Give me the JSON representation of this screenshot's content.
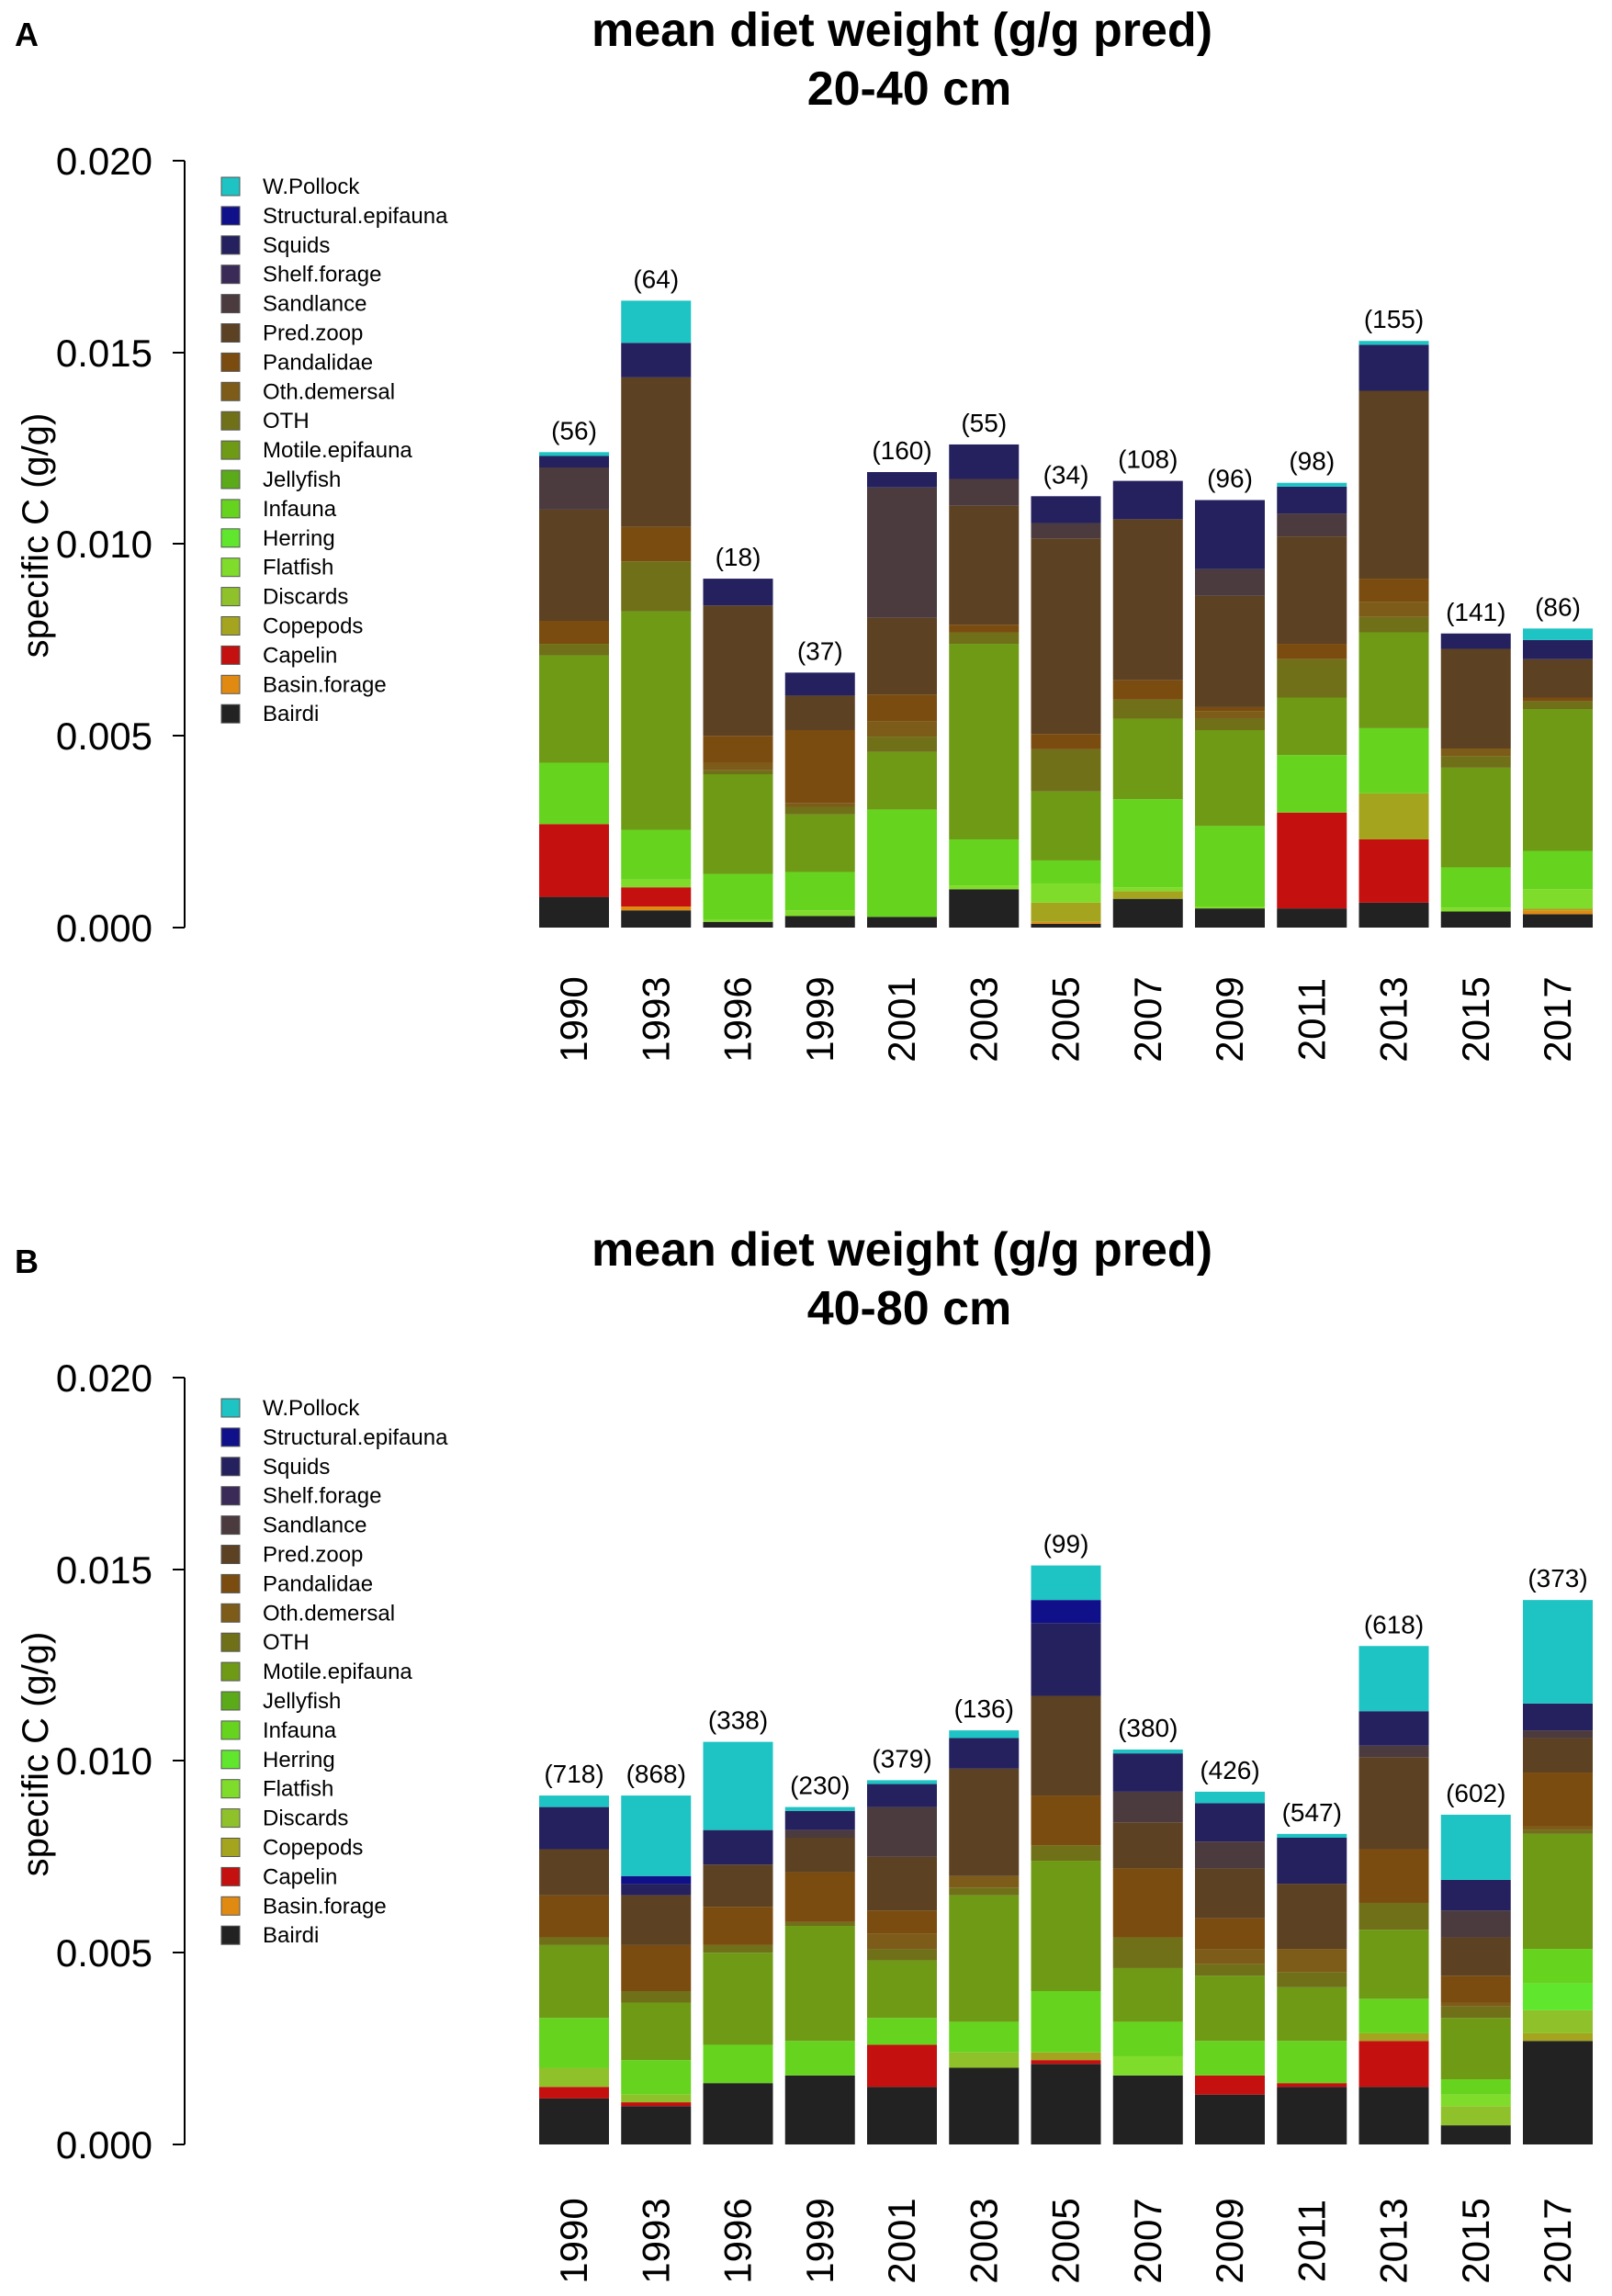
{
  "colors": {
    "W.Pollock": "#1ec3c3",
    "Structural.epifauna": "#10108a",
    "Squids": "#25215e",
    "Shelf.forage": "#3a2a58",
    "Sandlance": "#4b3a3e",
    "Pred.zoop": "#5c4122",
    "Pandalidae": "#7a4c0f",
    "Oth.demersal": "#7d5b18",
    "OTH": "#6f7018",
    "Motile.epifauna": "#6e9a16",
    "Jellyfish": "#5aaa1a",
    "Infauna": "#66d41e",
    "Herring": "#5fe62d",
    "Flatfish": "#80dc2a",
    "Discards": "#8fc22a",
    "Copepods": "#a4a41e",
    "Capelin": "#c4100e",
    "Basin.forage": "#e08a12",
    "Bairdi": "#222222"
  },
  "chart_data": [
    {
      "type": "bar",
      "panel_label": "A",
      "title": "mean diet weight (g/g pred)",
      "subtitle": "20-40 cm",
      "ylabel": "specific C (g/g)",
      "xlabel": "",
      "ylim": [
        0,
        0.02
      ],
      "yticks": [
        "0.000",
        "0.005",
        "0.010",
        "0.015",
        "0.020"
      ],
      "legend_position": "top-left",
      "stacked": true,
      "legend": [
        "W.Pollock",
        "Structural.epifauna",
        "Squids",
        "Shelf.forage",
        "Sandlance",
        "Pred.zoop",
        "Pandalidae",
        "Oth.demersal",
        "OTH",
        "Motile.epifauna",
        "Jellyfish",
        "Infauna",
        "Herring",
        "Flatfish",
        "Discards",
        "Copepods",
        "Capelin",
        "Basin.forage",
        "Bairdi"
      ],
      "categories": [
        "1990",
        "1993",
        "1996",
        "1999",
        "2001",
        "2003",
        "2005",
        "2007",
        "2009",
        "2011",
        "2013",
        "2015",
        "2017"
      ],
      "sample_sizes": [
        "(56)",
        "(64)",
        "(18)",
        "(37)",
        "(160)",
        "(55)",
        "(34)",
        "(108)",
        "(96)",
        "(98)",
        "(155)",
        "(141)",
        "(86)"
      ],
      "series": [
        {
          "name": "Bairdi",
          "values": [
            0.0008,
            0.00045,
            0.00015,
            0.0003,
            0.00028,
            0.001,
            0.0001,
            0.00075,
            0.0005,
            0.0005,
            0.00065,
            0.00042,
            0.00035
          ]
        },
        {
          "name": "Basin.forage",
          "values": [
            0,
            0.0001,
            0,
            0,
            0,
            0,
            5e-05,
            0,
            0,
            0,
            0,
            0,
            0.0001
          ]
        },
        {
          "name": "Capelin",
          "values": [
            0.0019,
            0.0005,
            0,
            0,
            0,
            0,
            0,
            0,
            0,
            0.0025,
            0.00165,
            0,
            0
          ]
        },
        {
          "name": "Copepods",
          "values": [
            0,
            0,
            0,
            0,
            0,
            0,
            0.0005,
            0.0002,
            0,
            0,
            0.0012,
            0,
            5e-05
          ]
        },
        {
          "name": "Discards",
          "values": [
            0,
            0,
            0,
            0,
            0,
            0,
            0,
            0,
            0,
            0,
            0,
            0,
            0
          ]
        },
        {
          "name": "Flatfish",
          "values": [
            0,
            0.0002,
            5e-05,
            0.00015,
            0,
            0.0001,
            0.0005,
            0.0001,
            5e-05,
            0,
            0,
            0.0001,
            0.0005
          ]
        },
        {
          "name": "Herring",
          "values": [
            0,
            0,
            0,
            0,
            0,
            0,
            0,
            0,
            0,
            0,
            0,
            0,
            0
          ]
        },
        {
          "name": "Infauna",
          "values": [
            0.0016,
            0.0013,
            0.0012,
            0.001,
            0.0028,
            0.0012,
            0.0006,
            0.0023,
            0.0021,
            0.0015,
            0.0017,
            0.00105,
            0.001
          ]
        },
        {
          "name": "Jellyfish",
          "values": [
            0,
            0,
            0,
            0,
            0,
            0,
            0,
            0,
            0,
            0,
            0,
            0,
            0
          ]
        },
        {
          "name": "Motile.epifauna",
          "values": [
            0.0028,
            0.0057,
            0.0026,
            0.0015,
            0.0015,
            0.0051,
            0.0018,
            0.0021,
            0.0025,
            0.0015,
            0.0025,
            0.0026,
            0.0037
          ]
        },
        {
          "name": "OTH",
          "values": [
            0.0003,
            0.0013,
            0.0001,
            0.0002,
            0.0004,
            0.0003,
            0.0011,
            0.0005,
            0.0003,
            0.001,
            0.0004,
            0.0003,
            0.0002
          ]
        },
        {
          "name": "Oth.demersal",
          "values": [
            0,
            0,
            0.0002,
            0.0001,
            0.0004,
            0,
            0,
            0,
            0.0002,
            0,
            0.0004,
            0.0002,
            0
          ]
        },
        {
          "name": "Pandalidae",
          "values": [
            0.0006,
            0.0009,
            0.0007,
            0.0019,
            0.0007,
            0.0002,
            0.0004,
            0.0005,
            0.0001,
            0.0004,
            0.0006,
            0,
            0.0001
          ]
        },
        {
          "name": "Pred.zoop",
          "values": [
            0.0029,
            0.0039,
            0.0034,
            0.0009,
            0.002,
            0.0031,
            0.0051,
            0.0042,
            0.0029,
            0.0028,
            0.0049,
            0.0026,
            0.001
          ]
        },
        {
          "name": "Sandlance",
          "values": [
            0.0011,
            0,
            0,
            0,
            0.0034,
            0.0007,
            0.0004,
            0,
            0.0007,
            0.0006,
            0,
            0,
            0
          ]
        },
        {
          "name": "Shelf.forage",
          "values": [
            0,
            0,
            0,
            0,
            0,
            0,
            0,
            0,
            0,
            0,
            0,
            0,
            0
          ]
        },
        {
          "name": "Squids",
          "values": [
            0.0003,
            0.0009,
            0.0007,
            0.0006,
            0.0004,
            0.0009,
            0.0007,
            0.001,
            0.0018,
            0.0007,
            0.0012,
            0.0004,
            0.0005
          ]
        },
        {
          "name": "Structural.epifauna",
          "values": [
            0,
            0,
            0,
            0,
            0,
            0,
            0,
            0,
            0,
            0,
            0,
            0,
            0
          ]
        },
        {
          "name": "W.Pollock",
          "values": [
            0.0001,
            0.0011,
            0,
            0,
            0,
            0,
            0,
            0,
            0,
            0.0001,
            0.0001,
            0,
            0.0003
          ]
        }
      ]
    },
    {
      "type": "bar",
      "panel_label": "B",
      "title": "mean diet weight (g/g pred)",
      "subtitle": "40-80 cm",
      "ylabel": "specific C (g/g)",
      "xlabel": "",
      "ylim": [
        0,
        0.02
      ],
      "yticks": [
        "0.000",
        "0.005",
        "0.010",
        "0.015",
        "0.020"
      ],
      "legend_position": "top-left",
      "stacked": true,
      "legend": [
        "W.Pollock",
        "Structural.epifauna",
        "Squids",
        "Shelf.forage",
        "Sandlance",
        "Pred.zoop",
        "Pandalidae",
        "Oth.demersal",
        "OTH",
        "Motile.epifauna",
        "Jellyfish",
        "Infauna",
        "Herring",
        "Flatfish",
        "Discards",
        "Copepods",
        "Capelin",
        "Basin.forage",
        "Bairdi"
      ],
      "categories": [
        "1990",
        "1993",
        "1996",
        "1999",
        "2001",
        "2003",
        "2005",
        "2007",
        "2009",
        "2011",
        "2013",
        "2015",
        "2017"
      ],
      "sample_sizes": [
        "(718)",
        "(868)",
        "(338)",
        "(230)",
        "(379)",
        "(136)",
        "(99)",
        "(380)",
        "(426)",
        "(547)",
        "(618)",
        "(602)",
        "(373)"
      ],
      "series": [
        {
          "name": "Bairdi",
          "values": [
            0.0012,
            0.001,
            0.0016,
            0.0018,
            0.0015,
            0.002,
            0.0021,
            0.0018,
            0.0013,
            0.0015,
            0.0015,
            0.0005,
            0.0027
          ]
        },
        {
          "name": "Basin.forage",
          "values": [
            0,
            0,
            0,
            0,
            0,
            0,
            0,
            0,
            0,
            0,
            0,
            0,
            0
          ]
        },
        {
          "name": "Capelin",
          "values": [
            0.0003,
            0.0001,
            0,
            0,
            0.0011,
            0,
            0.0001,
            0,
            0.0005,
            0.0001,
            0.0012,
            0,
            0
          ]
        },
        {
          "name": "Copepods",
          "values": [
            0,
            0,
            0,
            0,
            0,
            0,
            0.0002,
            0,
            0,
            0,
            0.0002,
            0,
            0.0002
          ]
        },
        {
          "name": "Discards",
          "values": [
            0.0005,
            0.0002,
            0,
            0,
            0,
            0.0004,
            0,
            0,
            0,
            0,
            0,
            0.0005,
            0.0006
          ]
        },
        {
          "name": "Flatfish",
          "values": [
            0,
            0,
            0,
            0,
            0,
            0,
            0,
            0.0005,
            0,
            0,
            0,
            0.0003,
            0
          ]
        },
        {
          "name": "Herring",
          "values": [
            0,
            0,
            0,
            0,
            0,
            0,
            0,
            0,
            0,
            0,
            0,
            0,
            0.0007
          ]
        },
        {
          "name": "Infauna",
          "values": [
            0.0013,
            0.0009,
            0.001,
            0.0009,
            0.0007,
            0.0008,
            0.0016,
            0.0009,
            0.0009,
            0.0011,
            0.0009,
            0.0004,
            0.0009
          ]
        },
        {
          "name": "Jellyfish",
          "values": [
            0,
            0,
            0,
            0,
            0,
            0,
            0,
            0,
            0,
            0,
            0,
            0,
            0
          ]
        },
        {
          "name": "Motile.epifauna",
          "values": [
            0.0019,
            0.0015,
            0.0024,
            0.003,
            0.0015,
            0.0033,
            0.0034,
            0.0014,
            0.0017,
            0.0014,
            0.0018,
            0.0016,
            0.003
          ]
        },
        {
          "name": "OTH",
          "values": [
            0.0002,
            0.0003,
            0.0002,
            0.0001,
            0.0003,
            0.0002,
            0.0004,
            0.0008,
            0.0003,
            0.0004,
            0.0007,
            0.0003,
            0.0001
          ]
        },
        {
          "name": "Oth.demersal",
          "values": [
            0,
            0,
            0,
            0,
            0.0004,
            0.0003,
            0,
            0,
            0.0004,
            0.0006,
            0,
            0.0001,
            0.0001
          ]
        },
        {
          "name": "Pandalidae",
          "values": [
            0.0011,
            0.0012,
            0.001,
            0.0013,
            0.0006,
            0,
            0.0013,
            0.0018,
            0.0008,
            0,
            0.0014,
            0.0007,
            0.0014
          ]
        },
        {
          "name": "Pred.zoop",
          "values": [
            0.0012,
            0.0013,
            0.0011,
            0.0009,
            0.0014,
            0.0028,
            0.0026,
            0.0012,
            0.0013,
            0.0017,
            0.0024,
            0.001,
            0.0009
          ]
        },
        {
          "name": "Sandlance",
          "values": [
            0,
            0,
            0,
            0.0002,
            0.0013,
            0,
            0,
            0.0008,
            0.0007,
            0,
            0.0003,
            0.0007,
            0.0002
          ]
        },
        {
          "name": "Shelf.forage",
          "values": [
            0,
            0,
            0,
            0,
            0,
            0,
            0,
            0,
            0,
            0,
            0,
            0,
            0
          ]
        },
        {
          "name": "Squids",
          "values": [
            0.0011,
            0.0003,
            0.0009,
            0.0005,
            0.0006,
            0.0008,
            0.0019,
            0.001,
            0.001,
            0.0012,
            0.0009,
            0.0008,
            0.0007
          ]
        },
        {
          "name": "Structural.epifauna",
          "values": [
            0,
            0.0002,
            0,
            0,
            0,
            0,
            0.0006,
            0,
            0,
            0,
            0,
            0,
            0
          ]
        },
        {
          "name": "W.Pollock",
          "values": [
            0.0003,
            0.0021,
            0.0023,
            0.0001,
            0.0001,
            0.0002,
            0.0009,
            0.0001,
            0.0003,
            0.0001,
            0.0017,
            0.0017,
            0.0027
          ]
        }
      ]
    }
  ]
}
